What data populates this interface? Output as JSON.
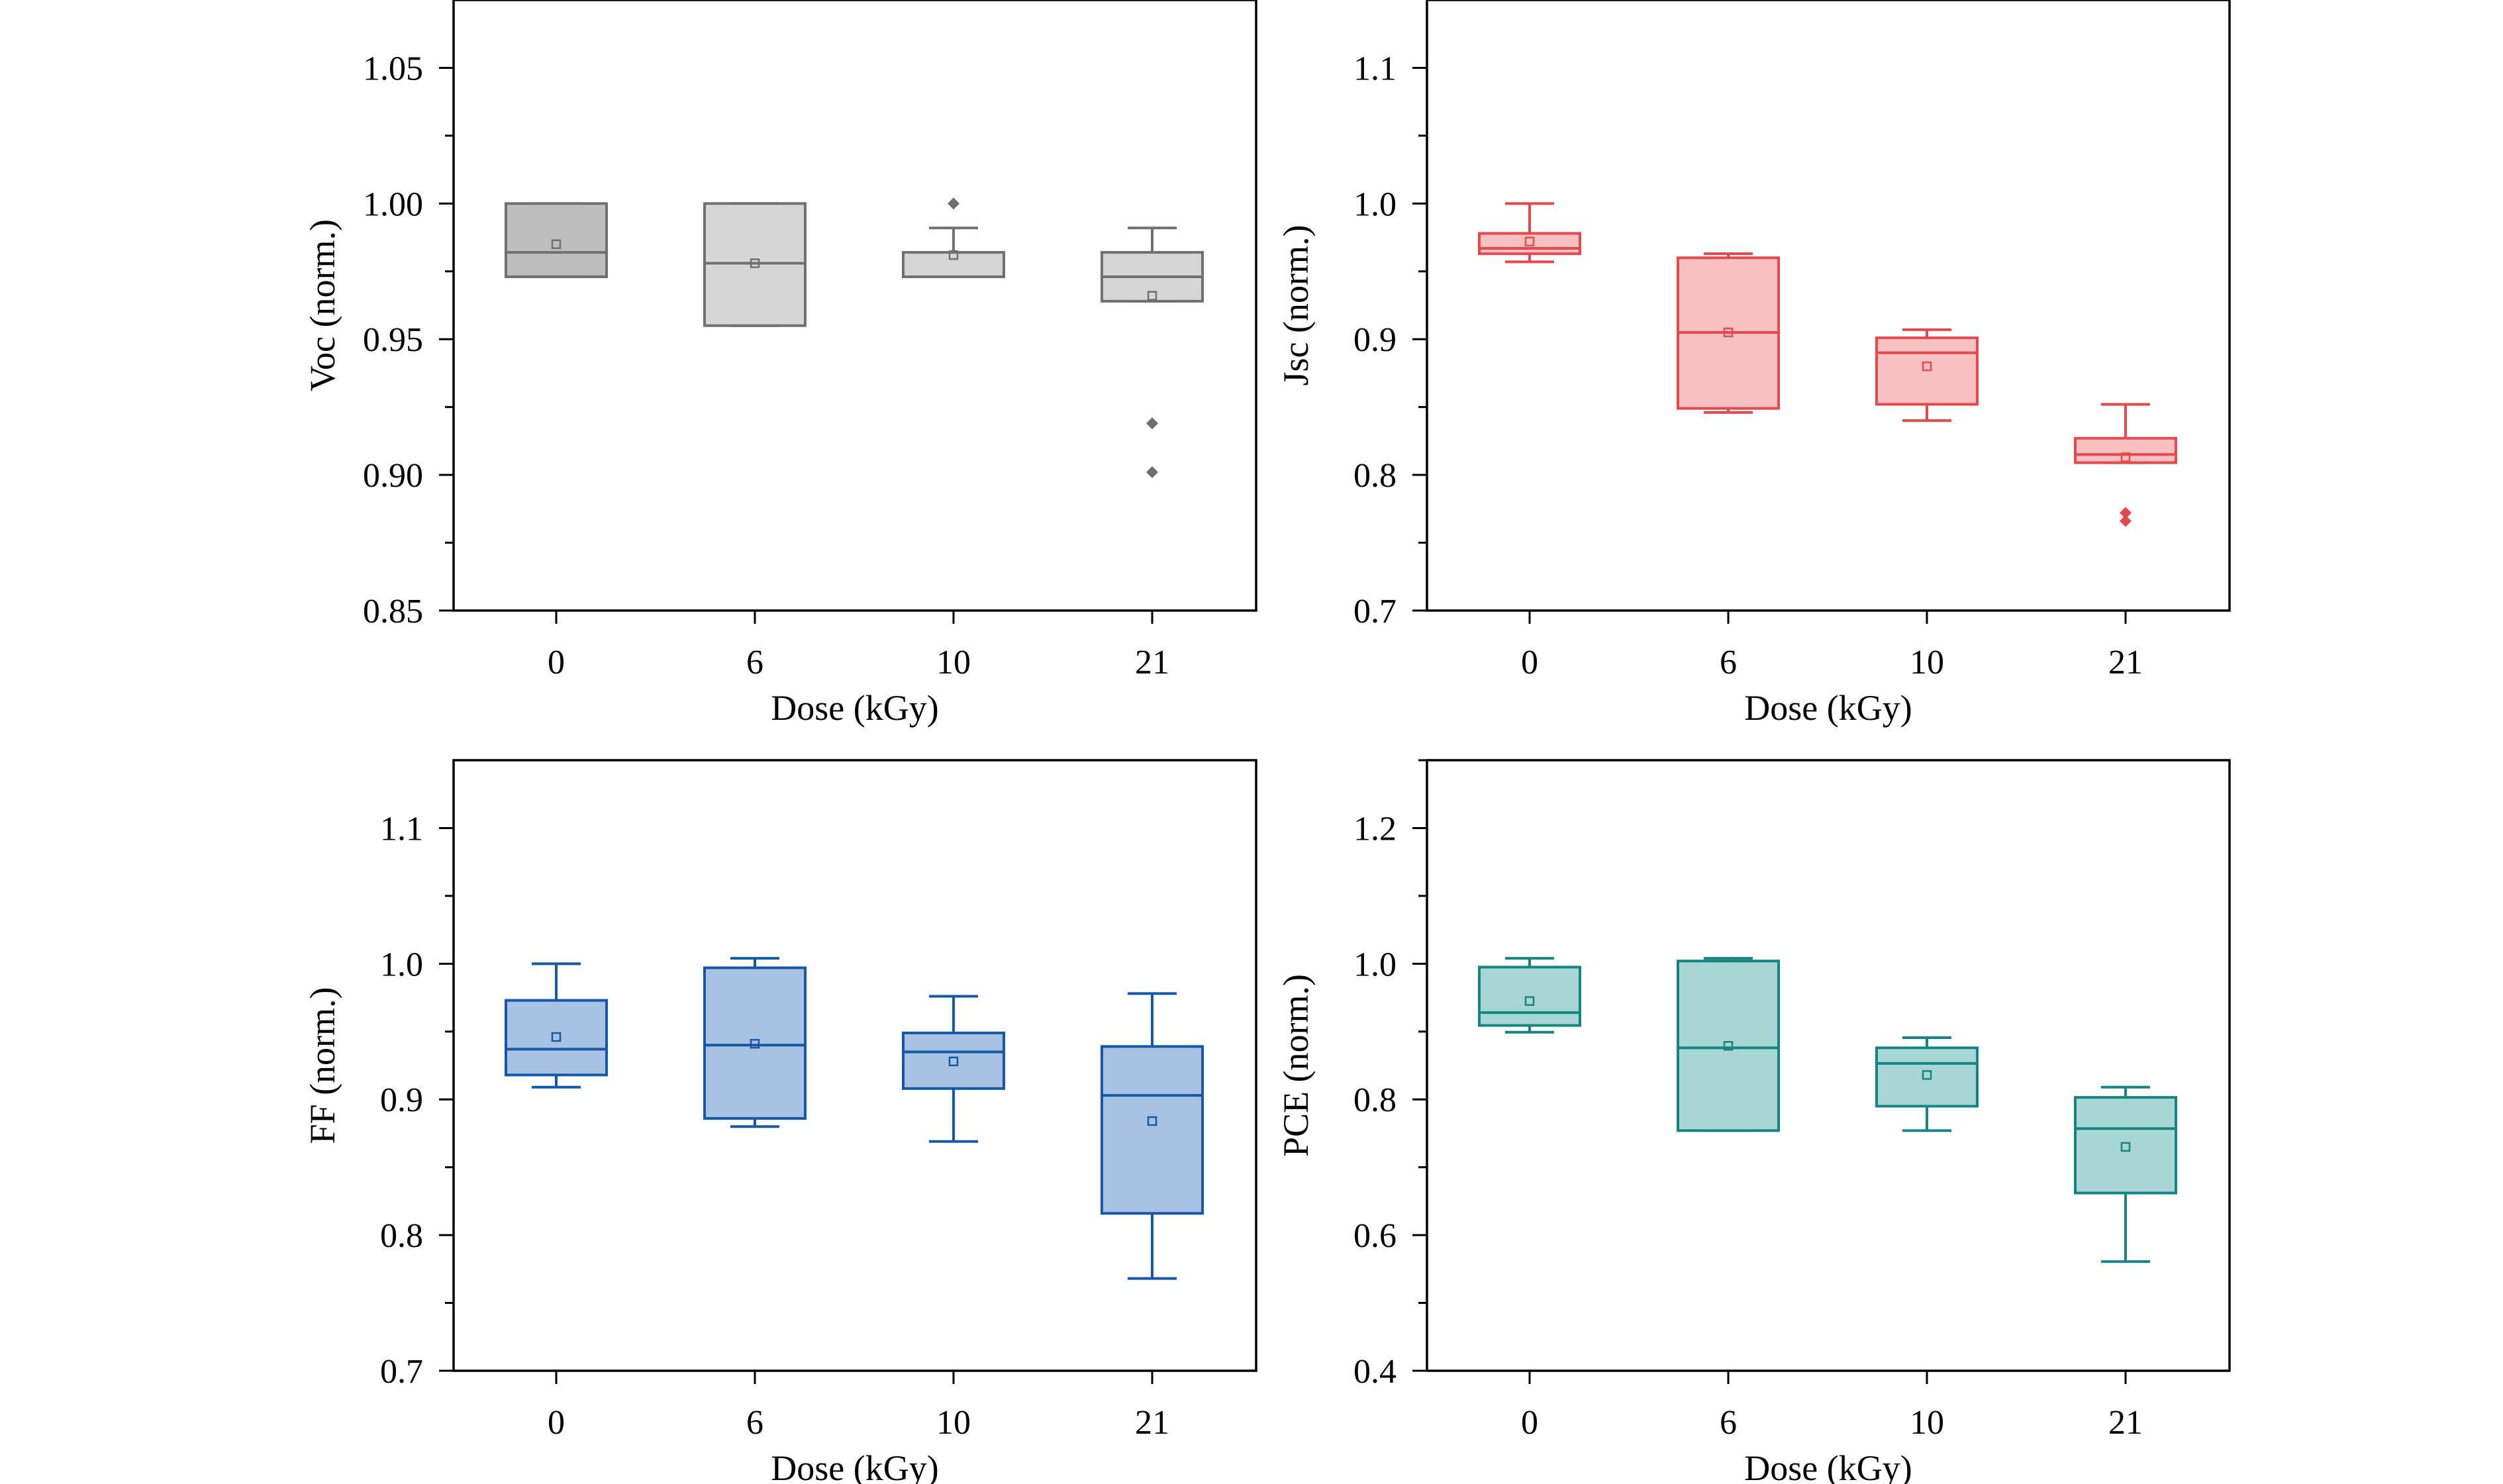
{
  "chart_data": [
    {
      "type": "box",
      "xlabel": "Dose (kGy)",
      "ylabel": "Voc (norm.)",
      "categories": [
        "0",
        "6",
        "10",
        "21"
      ],
      "ylim": [
        0.85,
        1.075
      ],
      "yticks": [
        0.85,
        0.9,
        0.95,
        1.0,
        1.05
      ],
      "ytick_labels": [
        "0.85",
        "0.90",
        "0.95",
        "1.00",
        "1.05"
      ],
      "color": {
        "fill": "#c4c4c4",
        "fills": [
          "#bdbdbd",
          "#d6d6d6",
          "#d6d6d6",
          "#d6d6d6"
        ],
        "stroke": "#707070",
        "outlier": "#6e6e6e"
      },
      "boxes": [
        {
          "category": "0",
          "whisker_low": 0.973,
          "q1": 0.973,
          "median": 0.982,
          "q3": 1.0,
          "whisker_high": 1.0,
          "mean": 0.985,
          "outliers": []
        },
        {
          "category": "6",
          "whisker_low": 0.955,
          "q1": 0.955,
          "median": 0.978,
          "q3": 1.0,
          "whisker_high": 1.0,
          "mean": 0.978,
          "outliers": []
        },
        {
          "category": "10",
          "whisker_low": 0.973,
          "q1": 0.973,
          "median": 0.973,
          "q3": 0.982,
          "whisker_high": 0.991,
          "mean": 0.981,
          "outliers": [
            1.0
          ]
        },
        {
          "category": "21",
          "whisker_low": 0.964,
          "q1": 0.964,
          "median": 0.973,
          "q3": 0.982,
          "whisker_high": 0.991,
          "mean": 0.966,
          "outliers": [
            0.919,
            0.901
          ]
        }
      ]
    },
    {
      "type": "box",
      "xlabel": "Dose (kGy)",
      "ylabel": "Jsc (norm.)",
      "categories": [
        "0",
        "6",
        "10",
        "21"
      ],
      "ylim": [
        0.7,
        1.15
      ],
      "yticks": [
        0.7,
        0.8,
        0.9,
        1.0,
        1.1
      ],
      "ytick_labels": [
        "0.7",
        "0.8",
        "0.9",
        "1.0",
        "1.1"
      ],
      "color": {
        "fill": "#f8c0c0",
        "stroke": "#e5484d",
        "outlier": "#e5484d"
      },
      "boxes": [
        {
          "category": "0",
          "whisker_low": 0.957,
          "q1": 0.963,
          "median": 0.967,
          "q3": 0.978,
          "whisker_high": 1.0,
          "mean": 0.972,
          "outliers": []
        },
        {
          "category": "6",
          "whisker_low": 0.846,
          "q1": 0.849,
          "median": 0.905,
          "q3": 0.96,
          "whisker_high": 0.963,
          "mean": 0.905,
          "outliers": []
        },
        {
          "category": "10",
          "whisker_low": 0.84,
          "q1": 0.852,
          "median": 0.89,
          "q3": 0.901,
          "whisker_high": 0.907,
          "mean": 0.88,
          "outliers": []
        },
        {
          "category": "21",
          "whisker_low": 0.809,
          "q1": 0.809,
          "median": 0.815,
          "q3": 0.827,
          "whisker_high": 0.852,
          "mean": 0.813,
          "outliers": [
            0.772,
            0.766
          ]
        }
      ]
    },
    {
      "type": "box",
      "xlabel": "Dose (kGy)",
      "ylabel": "FF (norm.)",
      "categories": [
        "0",
        "6",
        "10",
        "21"
      ],
      "ylim": [
        0.7,
        1.15
      ],
      "yticks": [
        0.7,
        0.8,
        0.9,
        1.0,
        1.1
      ],
      "ytick_labels": [
        "0.7",
        "0.8",
        "0.9",
        "1.0",
        "1.1"
      ],
      "color": {
        "fill": "#a7c2e3",
        "stroke": "#1658a5",
        "outlier": "#1658a5"
      },
      "boxes": [
        {
          "category": "0",
          "whisker_low": 0.909,
          "q1": 0.918,
          "median": 0.937,
          "q3": 0.973,
          "whisker_high": 1.0,
          "mean": 0.946,
          "outliers": []
        },
        {
          "category": "6",
          "whisker_low": 0.88,
          "q1": 0.886,
          "median": 0.94,
          "q3": 0.997,
          "whisker_high": 1.004,
          "mean": 0.941,
          "outliers": []
        },
        {
          "category": "10",
          "whisker_low": 0.869,
          "q1": 0.908,
          "median": 0.935,
          "q3": 0.949,
          "whisker_high": 0.976,
          "mean": 0.928,
          "outliers": []
        },
        {
          "category": "21",
          "whisker_low": 0.768,
          "q1": 0.816,
          "median": 0.903,
          "q3": 0.939,
          "whisker_high": 0.978,
          "mean": 0.884,
          "outliers": []
        }
      ]
    },
    {
      "type": "box",
      "xlabel": "Dose (kGy)",
      "ylabel": "PCE (norm.)",
      "categories": [
        "0",
        "6",
        "10",
        "21"
      ],
      "ylim": [
        0.4,
        1.3
      ],
      "yticks": [
        0.4,
        0.6,
        0.8,
        1.0,
        1.2
      ],
      "ytick_labels": [
        "0.4",
        "0.6",
        "0.8",
        "1.0",
        "1.2"
      ],
      "color": {
        "fill": "#a8d6d4",
        "stroke": "#168581",
        "outlier": "#168581"
      },
      "boxes": [
        {
          "category": "0",
          "whisker_low": 0.899,
          "q1": 0.909,
          "median": 0.928,
          "q3": 0.995,
          "whisker_high": 1.008,
          "mean": 0.945,
          "outliers": []
        },
        {
          "category": "6",
          "whisker_low": 0.754,
          "q1": 0.754,
          "median": 0.876,
          "q3": 1.004,
          "whisker_high": 1.008,
          "mean": 0.879,
          "outliers": []
        },
        {
          "category": "10",
          "whisker_low": 0.754,
          "q1": 0.79,
          "median": 0.853,
          "q3": 0.876,
          "whisker_high": 0.891,
          "mean": 0.836,
          "outliers": []
        },
        {
          "category": "21",
          "whisker_low": 0.561,
          "q1": 0.662,
          "median": 0.757,
          "q3": 0.803,
          "whisker_high": 0.818,
          "mean": 0.73,
          "outliers": []
        }
      ]
    }
  ]
}
